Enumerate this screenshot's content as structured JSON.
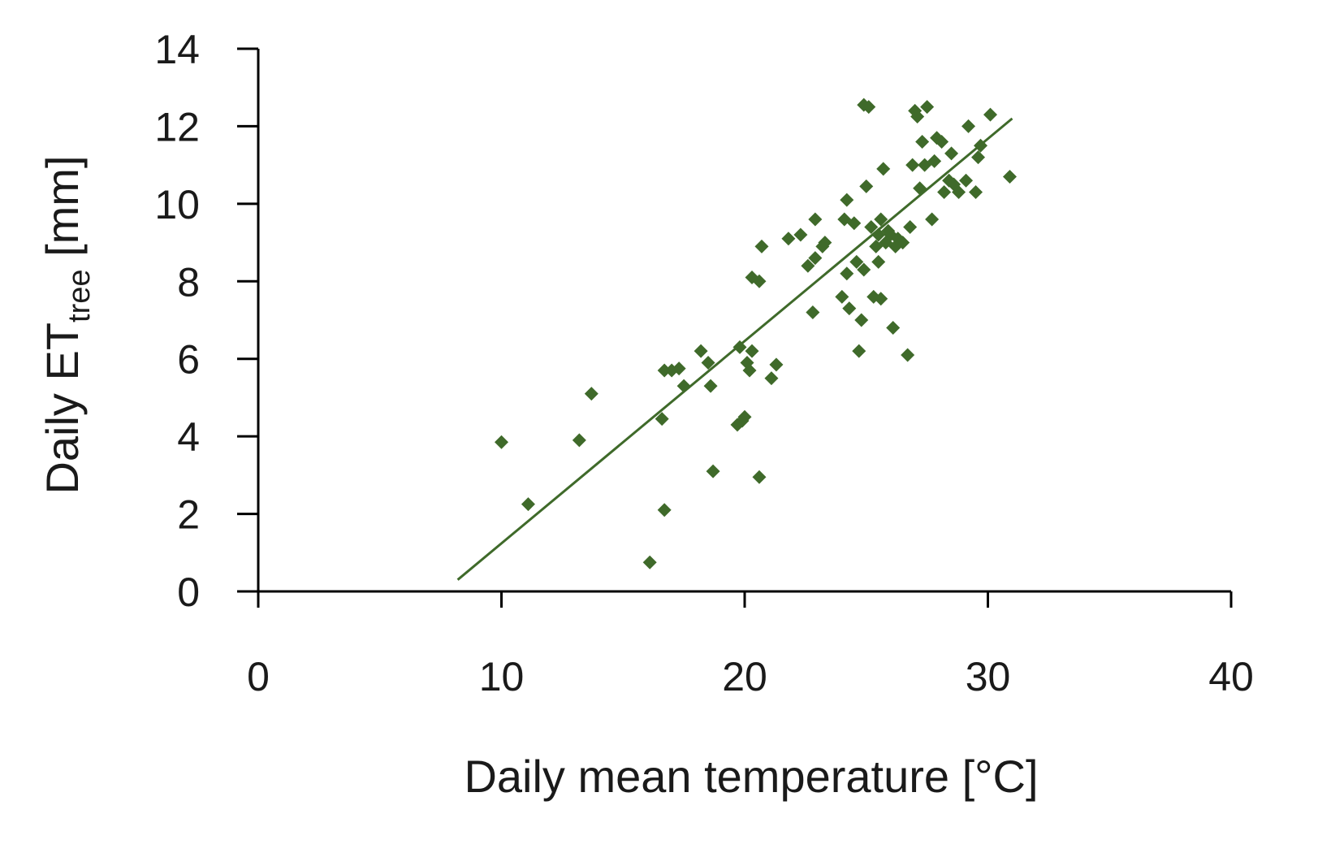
{
  "chart_data": {
    "type": "scatter",
    "xlabel": "Daily mean temperature [°C]",
    "ylabel": {
      "main": "Daily ET",
      "subscript": "tree",
      "unit": " [mm]"
    },
    "xlim": [
      0,
      40
    ],
    "ylim": [
      0,
      14
    ],
    "x_ticks": [
      0,
      10,
      20,
      30,
      40
    ],
    "y_ticks": [
      0,
      2,
      4,
      6,
      8,
      10,
      12,
      14
    ],
    "grid": false,
    "legend": "none",
    "marker": "diamond",
    "color": "#3f6a2a",
    "series": [
      {
        "points": [
          [
            10.0,
            3.85
          ],
          [
            11.1,
            2.25
          ],
          [
            13.2,
            3.9
          ],
          [
            13.7,
            5.1
          ],
          [
            16.1,
            0.75
          ],
          [
            16.6,
            4.45
          ],
          [
            16.7,
            2.1
          ],
          [
            16.7,
            5.7
          ],
          [
            17.0,
            5.7
          ],
          [
            17.3,
            5.75
          ],
          [
            17.5,
            5.3
          ],
          [
            18.2,
            6.2
          ],
          [
            18.5,
            5.9
          ],
          [
            18.6,
            5.3
          ],
          [
            18.7,
            3.1
          ],
          [
            19.7,
            4.3
          ],
          [
            19.8,
            6.3
          ],
          [
            19.9,
            4.4
          ],
          [
            20.0,
            4.5
          ],
          [
            20.1,
            5.9
          ],
          [
            20.2,
            5.7
          ],
          [
            20.3,
            6.2
          ],
          [
            20.3,
            8.1
          ],
          [
            20.6,
            2.95
          ],
          [
            20.6,
            8.0
          ],
          [
            20.7,
            8.9
          ],
          [
            21.1,
            5.5
          ],
          [
            21.3,
            5.85
          ],
          [
            21.8,
            9.1
          ],
          [
            22.3,
            9.2
          ],
          [
            22.6,
            8.4
          ],
          [
            22.8,
            7.2
          ],
          [
            22.9,
            8.6
          ],
          [
            22.9,
            9.6
          ],
          [
            23.2,
            8.9
          ],
          [
            23.3,
            9.0
          ],
          [
            24.0,
            7.6
          ],
          [
            24.1,
            9.6
          ],
          [
            24.2,
            10.1
          ],
          [
            24.2,
            8.2
          ],
          [
            24.3,
            7.3
          ],
          [
            24.5,
            9.5
          ],
          [
            24.6,
            8.5
          ],
          [
            24.7,
            6.2
          ],
          [
            24.8,
            7.0
          ],
          [
            24.9,
            8.3
          ],
          [
            25.0,
            10.45
          ],
          [
            24.9,
            12.55
          ],
          [
            25.1,
            12.5
          ],
          [
            25.2,
            9.4
          ],
          [
            25.3,
            7.6
          ],
          [
            25.4,
            8.9
          ],
          [
            25.5,
            9.2
          ],
          [
            25.5,
            8.5
          ],
          [
            25.6,
            9.6
          ],
          [
            25.6,
            7.55
          ],
          [
            25.7,
            10.9
          ],
          [
            25.8,
            9.0
          ],
          [
            25.9,
            9.3
          ],
          [
            26.0,
            9.2
          ],
          [
            26.1,
            6.8
          ],
          [
            26.2,
            8.9
          ],
          [
            26.3,
            9.1
          ],
          [
            26.5,
            9.0
          ],
          [
            26.8,
            9.4
          ],
          [
            26.7,
            6.1
          ],
          [
            26.9,
            11.0
          ],
          [
            27.0,
            12.4
          ],
          [
            27.1,
            12.25
          ],
          [
            27.2,
            10.4
          ],
          [
            27.3,
            11.6
          ],
          [
            27.4,
            11.0
          ],
          [
            27.5,
            12.5
          ],
          [
            27.7,
            9.6
          ],
          [
            27.8,
            11.1
          ],
          [
            27.9,
            11.7
          ],
          [
            28.1,
            11.6
          ],
          [
            28.2,
            10.3
          ],
          [
            28.4,
            10.6
          ],
          [
            28.5,
            11.3
          ],
          [
            28.6,
            10.5
          ],
          [
            28.8,
            10.3
          ],
          [
            29.1,
            10.6
          ],
          [
            29.2,
            12.0
          ],
          [
            29.5,
            10.3
          ],
          [
            29.6,
            11.2
          ],
          [
            29.7,
            11.5
          ],
          [
            30.1,
            12.3
          ],
          [
            30.9,
            10.7
          ]
        ]
      }
    ],
    "trendline": {
      "x": [
        8.2,
        31.0
      ],
      "y": [
        0.3,
        12.2
      ]
    }
  }
}
